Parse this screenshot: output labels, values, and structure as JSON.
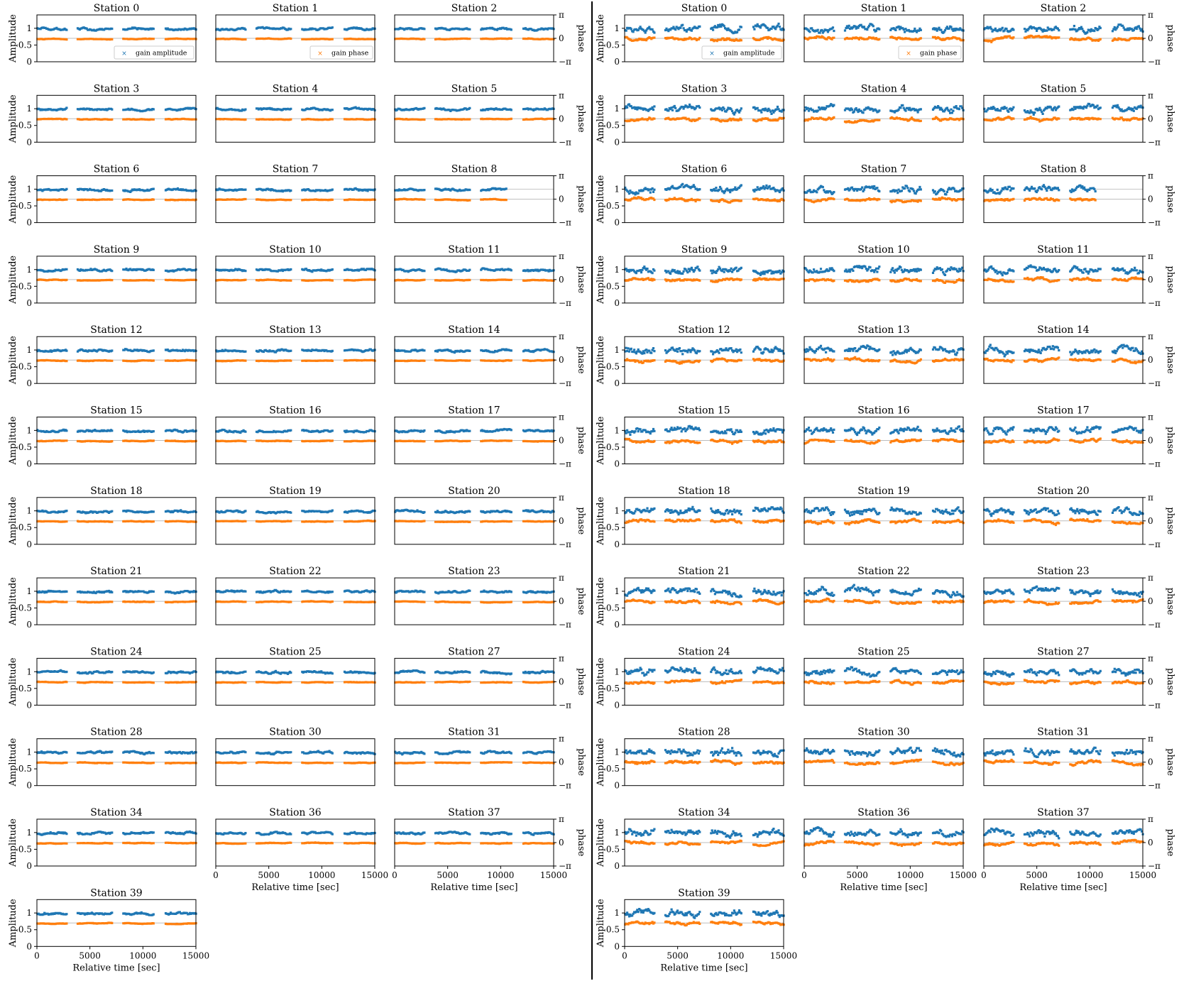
{
  "figure": {
    "left_panel_label": "",
    "right_panel_label": ""
  },
  "axes_text": {
    "ylabel": "Amplitude",
    "y2label": "phase",
    "xlabel": "Relative time [sec]",
    "yticks": [
      "0",
      "0.5",
      "1"
    ],
    "y2ticks": [
      "π",
      "0",
      "−π"
    ],
    "xticks": [
      "0",
      "5000",
      "10000",
      "15000"
    ],
    "legend_amplitude": "gain amplitude",
    "legend_phase": "gain phase"
  },
  "colors": {
    "amplitude": "#1f77b4",
    "phase": "#ff7f0e",
    "divider": "#000000"
  },
  "chart_data": {
    "type": "scatter",
    "stations": [
      "Station 0",
      "Station 1",
      "Station 2",
      "Station 3",
      "Station 4",
      "Station 5",
      "Station 6",
      "Station 7",
      "Station 8",
      "Station 9",
      "Station 10",
      "Station 11",
      "Station 12",
      "Station 13",
      "Station 14",
      "Station 15",
      "Station 16",
      "Station 17",
      "Station 18",
      "Station 19",
      "Station 20",
      "Station 21",
      "Station 22",
      "Station 23",
      "Station 24",
      "Station 25",
      "Station 27",
      "Station 28",
      "Station 30",
      "Station 31",
      "Station 34",
      "Station 36",
      "Station 37",
      "Station 39"
    ],
    "x_range": [
      0,
      15000
    ],
    "amplitude_ylim": [
      0,
      1.4
    ],
    "phase_ylim": [
      "-pi",
      "pi"
    ],
    "gap_x": 10500,
    "gap_stations": [
      "Station 8"
    ],
    "observation_blocks": [
      [
        0,
        2800
      ],
      [
        3800,
        7100
      ],
      [
        8100,
        11000
      ],
      [
        12100,
        15000
      ]
    ],
    "series": [
      {
        "name": "gain amplitude",
        "marker": "x",
        "typical_value": 1.0
      },
      {
        "name": "gain phase",
        "marker": "x",
        "typical_value": 0.0
      }
    ],
    "panels": [
      {
        "side": "left",
        "amp_noise": 0.02,
        "phase_noise": 0.05
      },
      {
        "side": "right",
        "amp_noise": 0.06,
        "phase_noise": 0.22
      }
    ]
  }
}
